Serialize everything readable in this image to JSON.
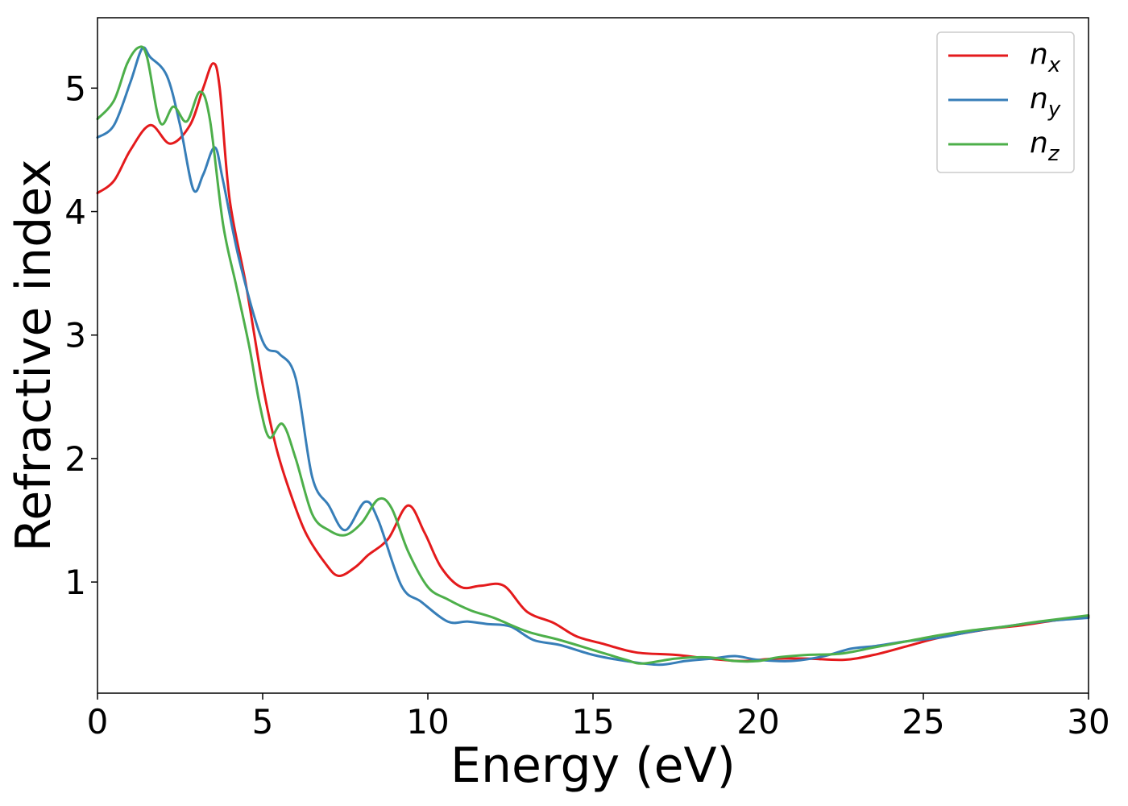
{
  "chart_data": {
    "type": "line",
    "xlabel": "Energy (eV)",
    "ylabel": "Refractive index",
    "xlim": [
      0,
      30
    ],
    "ylim": [
      0.1,
      5.57
    ],
    "xticks": [
      0,
      5,
      10,
      15,
      20,
      25,
      30
    ],
    "yticks": [
      1,
      2,
      3,
      4,
      5
    ],
    "grid": false,
    "legend_position": "top-right",
    "series": [
      {
        "name": "n",
        "subscript": "x",
        "color": "#e41a1c",
        "points": [
          [
            0,
            4.15
          ],
          [
            0.5,
            4.25
          ],
          [
            1.0,
            4.5
          ],
          [
            1.6,
            4.7
          ],
          [
            2.2,
            4.55
          ],
          [
            2.8,
            4.7
          ],
          [
            3.2,
            5.0
          ],
          [
            3.5,
            5.2
          ],
          [
            3.7,
            5.0
          ],
          [
            4.0,
            4.1
          ],
          [
            4.5,
            3.4
          ],
          [
            5.0,
            2.6
          ],
          [
            5.4,
            2.1
          ],
          [
            5.8,
            1.75
          ],
          [
            6.3,
            1.4
          ],
          [
            6.9,
            1.15
          ],
          [
            7.3,
            1.05
          ],
          [
            7.8,
            1.12
          ],
          [
            8.2,
            1.22
          ],
          [
            8.8,
            1.35
          ],
          [
            9.4,
            1.62
          ],
          [
            9.9,
            1.4
          ],
          [
            10.4,
            1.12
          ],
          [
            11.0,
            0.96
          ],
          [
            11.6,
            0.97
          ],
          [
            12.3,
            0.97
          ],
          [
            13.0,
            0.76
          ],
          [
            13.8,
            0.67
          ],
          [
            14.5,
            0.56
          ],
          [
            15.3,
            0.5
          ],
          [
            16.3,
            0.43
          ],
          [
            17.5,
            0.41
          ],
          [
            18.5,
            0.38
          ],
          [
            19.5,
            0.36
          ],
          [
            20.5,
            0.38
          ],
          [
            21.5,
            0.38
          ],
          [
            22.6,
            0.37
          ],
          [
            23.5,
            0.41
          ],
          [
            24.5,
            0.48
          ],
          [
            25.5,
            0.55
          ],
          [
            27.0,
            0.62
          ],
          [
            28.0,
            0.65
          ],
          [
            29.0,
            0.69
          ],
          [
            30.0,
            0.72
          ]
        ]
      },
      {
        "name": "n",
        "subscript": "y",
        "color": "#377eb8",
        "points": [
          [
            0,
            4.6
          ],
          [
            0.5,
            4.7
          ],
          [
            1.0,
            5.05
          ],
          [
            1.35,
            5.32
          ],
          [
            1.6,
            5.25
          ],
          [
            2.1,
            5.1
          ],
          [
            2.5,
            4.7
          ],
          [
            2.9,
            4.18
          ],
          [
            3.2,
            4.3
          ],
          [
            3.55,
            4.52
          ],
          [
            3.8,
            4.25
          ],
          [
            4.3,
            3.6
          ],
          [
            5.0,
            2.95
          ],
          [
            5.5,
            2.85
          ],
          [
            6.0,
            2.65
          ],
          [
            6.5,
            1.85
          ],
          [
            7.0,
            1.62
          ],
          [
            7.5,
            1.42
          ],
          [
            8.1,
            1.65
          ],
          [
            8.5,
            1.5
          ],
          [
            9.2,
            0.97
          ],
          [
            9.8,
            0.84
          ],
          [
            10.6,
            0.68
          ],
          [
            11.2,
            0.68
          ],
          [
            11.8,
            0.66
          ],
          [
            12.5,
            0.64
          ],
          [
            13.2,
            0.53
          ],
          [
            14.0,
            0.49
          ],
          [
            15.0,
            0.41
          ],
          [
            16.0,
            0.36
          ],
          [
            17.0,
            0.33
          ],
          [
            17.8,
            0.36
          ],
          [
            18.6,
            0.38
          ],
          [
            19.3,
            0.4
          ],
          [
            20.0,
            0.37
          ],
          [
            21.0,
            0.36
          ],
          [
            22.0,
            0.4
          ],
          [
            22.8,
            0.46
          ],
          [
            23.5,
            0.48
          ],
          [
            24.5,
            0.52
          ],
          [
            25.5,
            0.55
          ],
          [
            26.5,
            0.6
          ],
          [
            28.0,
            0.66
          ],
          [
            29.0,
            0.69
          ],
          [
            30.0,
            0.71
          ]
        ]
      },
      {
        "name": "n",
        "subscript": "z",
        "color": "#4daf4a",
        "points": [
          [
            0,
            4.75
          ],
          [
            0.5,
            4.9
          ],
          [
            0.9,
            5.2
          ],
          [
            1.25,
            5.33
          ],
          [
            1.5,
            5.25
          ],
          [
            1.9,
            4.72
          ],
          [
            2.3,
            4.85
          ],
          [
            2.7,
            4.73
          ],
          [
            3.1,
            4.97
          ],
          [
            3.4,
            4.75
          ],
          [
            3.8,
            3.9
          ],
          [
            4.2,
            3.4
          ],
          [
            4.6,
            2.9
          ],
          [
            4.9,
            2.45
          ],
          [
            5.2,
            2.17
          ],
          [
            5.6,
            2.28
          ],
          [
            6.0,
            2.0
          ],
          [
            6.5,
            1.55
          ],
          [
            7.0,
            1.42
          ],
          [
            7.5,
            1.38
          ],
          [
            8.0,
            1.48
          ],
          [
            8.5,
            1.67
          ],
          [
            8.9,
            1.6
          ],
          [
            9.4,
            1.25
          ],
          [
            10.0,
            0.96
          ],
          [
            10.6,
            0.86
          ],
          [
            11.3,
            0.77
          ],
          [
            12.0,
            0.71
          ],
          [
            13.0,
            0.6
          ],
          [
            14.0,
            0.53
          ],
          [
            15.0,
            0.45
          ],
          [
            16.0,
            0.37
          ],
          [
            16.5,
            0.34
          ],
          [
            17.5,
            0.38
          ],
          [
            18.5,
            0.39
          ],
          [
            19.3,
            0.36
          ],
          [
            20.0,
            0.36
          ],
          [
            20.6,
            0.39
          ],
          [
            21.5,
            0.41
          ],
          [
            22.5,
            0.42
          ],
          [
            23.5,
            0.47
          ],
          [
            24.5,
            0.52
          ],
          [
            25.5,
            0.57
          ],
          [
            26.5,
            0.61
          ],
          [
            27.5,
            0.64
          ],
          [
            28.5,
            0.68
          ],
          [
            30.0,
            0.73
          ]
        ]
      }
    ]
  }
}
